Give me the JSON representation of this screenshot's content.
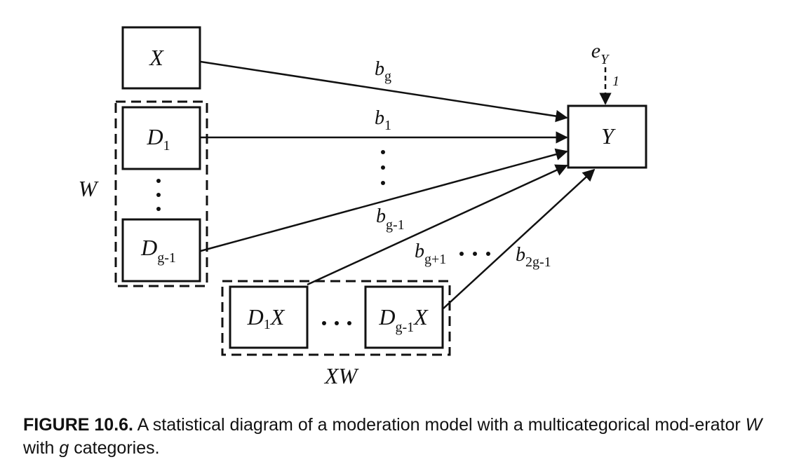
{
  "nodes": {
    "x": "X",
    "d1": {
      "main": "D",
      "sub": "1"
    },
    "dg1": {
      "main": "D",
      "sub": "g-1"
    },
    "d1x": {
      "main": "D",
      "sub": "1",
      "tail": "X"
    },
    "dg1x": {
      "main": "D",
      "sub": "g-1",
      "tail": "X"
    },
    "y": "Y",
    "error": {
      "main": "e",
      "sub": "Y"
    }
  },
  "groups": {
    "w": "W",
    "xw": "XW"
  },
  "edges": {
    "bg": {
      "main": "b",
      "sub": "g"
    },
    "b1": {
      "main": "b",
      "sub": "1"
    },
    "bg1": {
      "main": "b",
      "sub": "g-1"
    },
    "bgp1": {
      "main": "b",
      "sub": "g+1"
    },
    "b2g1": {
      "main": "b",
      "sub": "2g-1"
    },
    "error_weight": "1"
  },
  "caption": {
    "label": "FIGURE 10.6.",
    "text_1": " A statistical diagram of a moderation model with a multicategorical mod-erator ",
    "w": "W",
    "text_2": " with ",
    "g": "g",
    "text_3": " categories."
  }
}
